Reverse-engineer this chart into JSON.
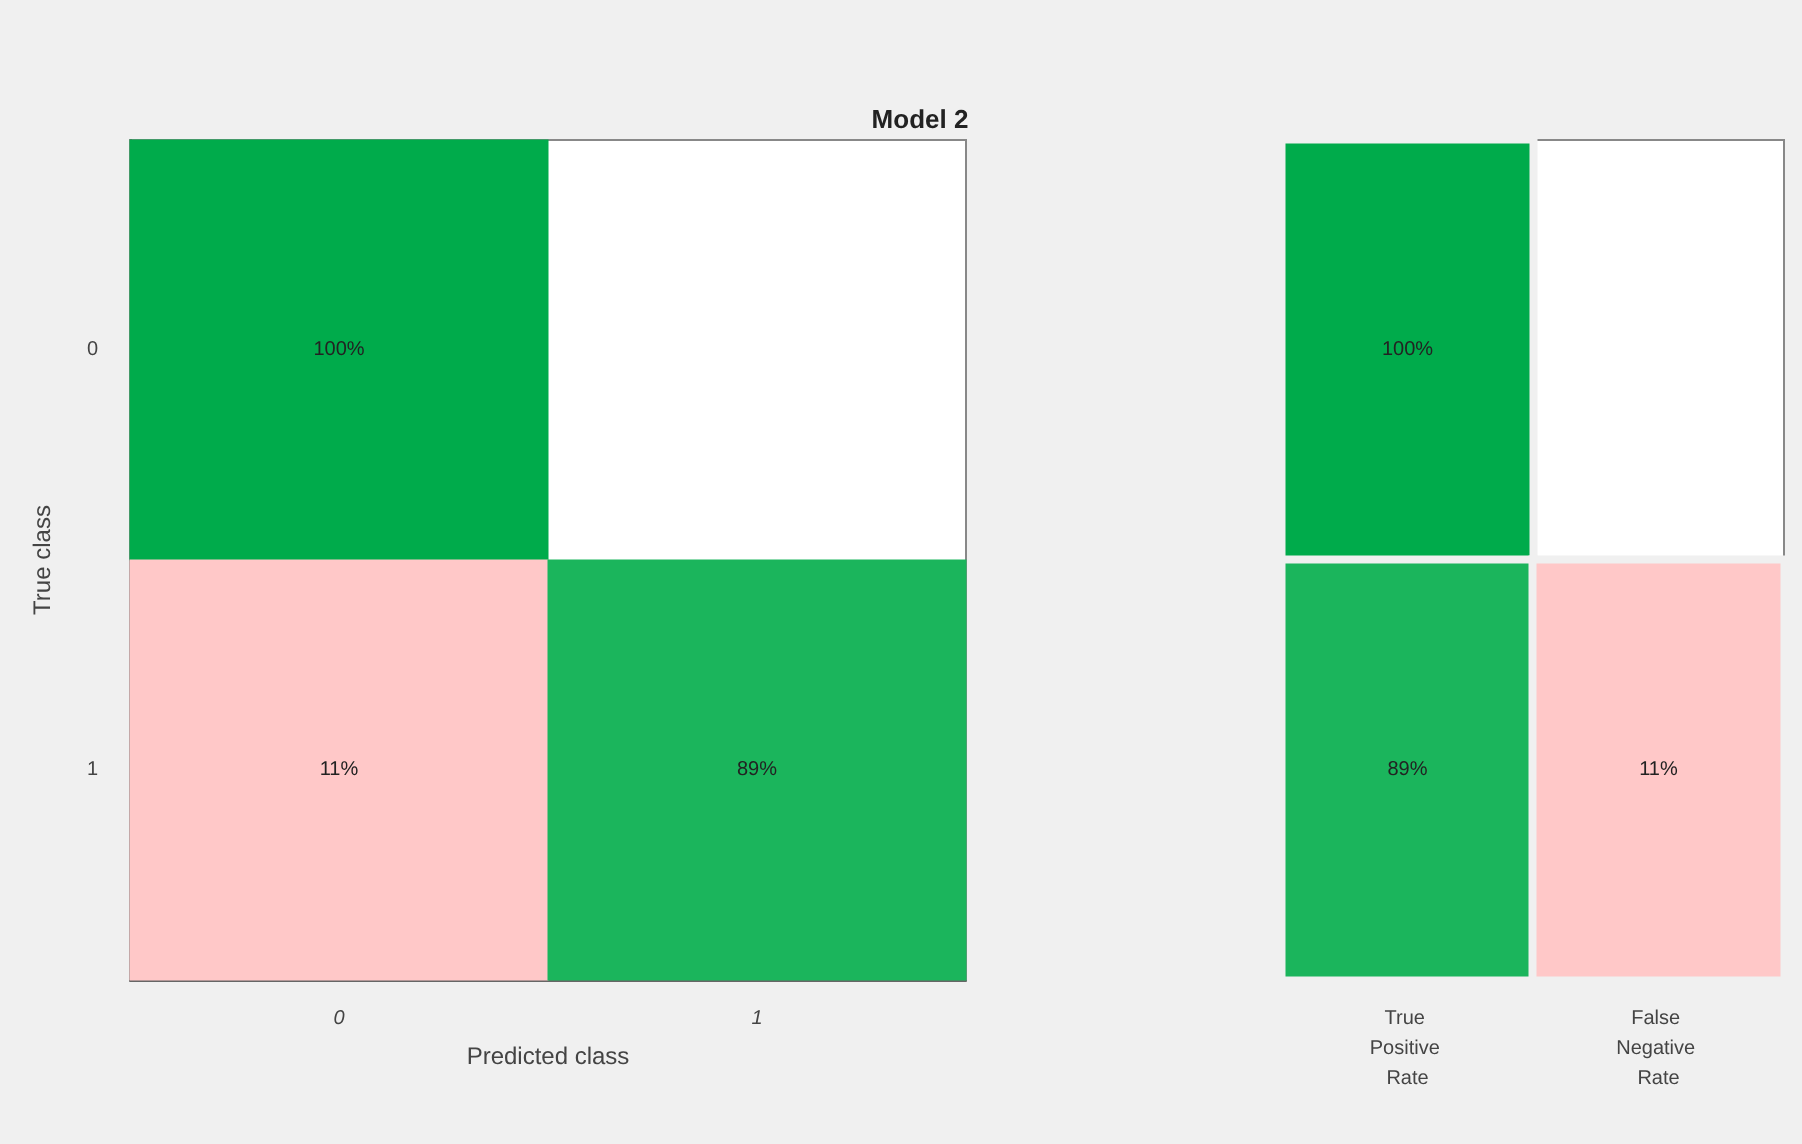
{
  "chart_data": [
    {
      "type": "heatmap",
      "title": "Model 2",
      "xlabel": "Predicted class",
      "ylabel": "True class",
      "categories": [
        "0",
        "1"
      ],
      "y_categories": [
        "0",
        "1"
      ],
      "cells": [
        [
          100,
          null
        ],
        [
          11,
          89
        ]
      ],
      "cell_labels": [
        [
          "100%",
          null
        ],
        [
          "11%",
          "89%"
        ]
      ]
    },
    {
      "type": "heatmap",
      "categories": [
        "True Positive Rate",
        "False Negative Rate"
      ],
      "y_categories": [
        "0",
        "1"
      ],
      "tick_labels": "x",
      "cells": [
        [
          100,
          null
        ],
        [
          89,
          11
        ]
      ],
      "cell_labels": [
        [
          "100%",
          null
        ],
        [
          "89%",
          "11%"
        ]
      ]
    }
  ]
}
